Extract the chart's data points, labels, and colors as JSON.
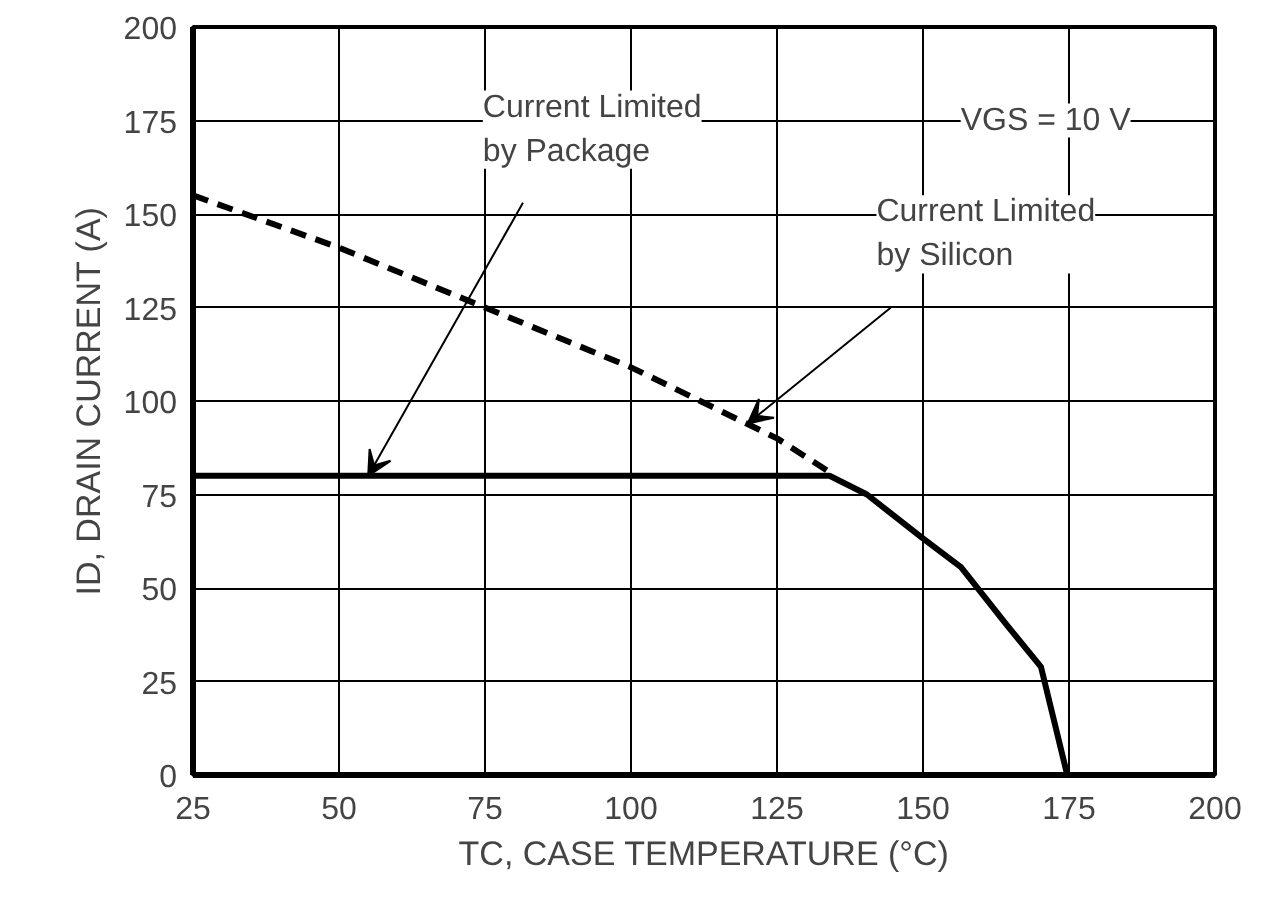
{
  "chart_data": {
    "type": "line",
    "xlabel": "TC, CASE TEMPERATURE (°C)",
    "ylabel": "ID, DRAIN CURRENT (A)",
    "xlim": [
      25,
      200
    ],
    "xticks": [
      25,
      50,
      75,
      100,
      125,
      150,
      175,
      200
    ],
    "ylim": [
      0,
      200
    ],
    "yticks": [
      0,
      25,
      50,
      75,
      100,
      125,
      150,
      175,
      200
    ],
    "grid": true,
    "marker": "none",
    "series": [
      {
        "color": "#000000",
        "line_style": "solid",
        "x": [
          25,
          134,
          140.4,
          149.7,
          156.5,
          164.4,
          170.2,
          174.7
        ],
        "values": [
          80,
          80,
          75,
          63.6,
          55.6,
          40,
          28.9,
          0
        ]
      },
      {
        "color": "#000000",
        "line_style": "dashed",
        "x": [
          25,
          50,
          75,
          100,
          125,
          134
        ],
        "values": [
          155,
          141,
          125,
          109,
          90,
          81
        ]
      }
    ],
    "annotations": [
      {
        "text": "Current Limited\nby Package",
        "x": 55,
        "y": 80
      },
      {
        "text": "Current Limited\nby Silicon",
        "x": 120,
        "y": 94
      },
      "VGS = 10 V"
    ]
  }
}
